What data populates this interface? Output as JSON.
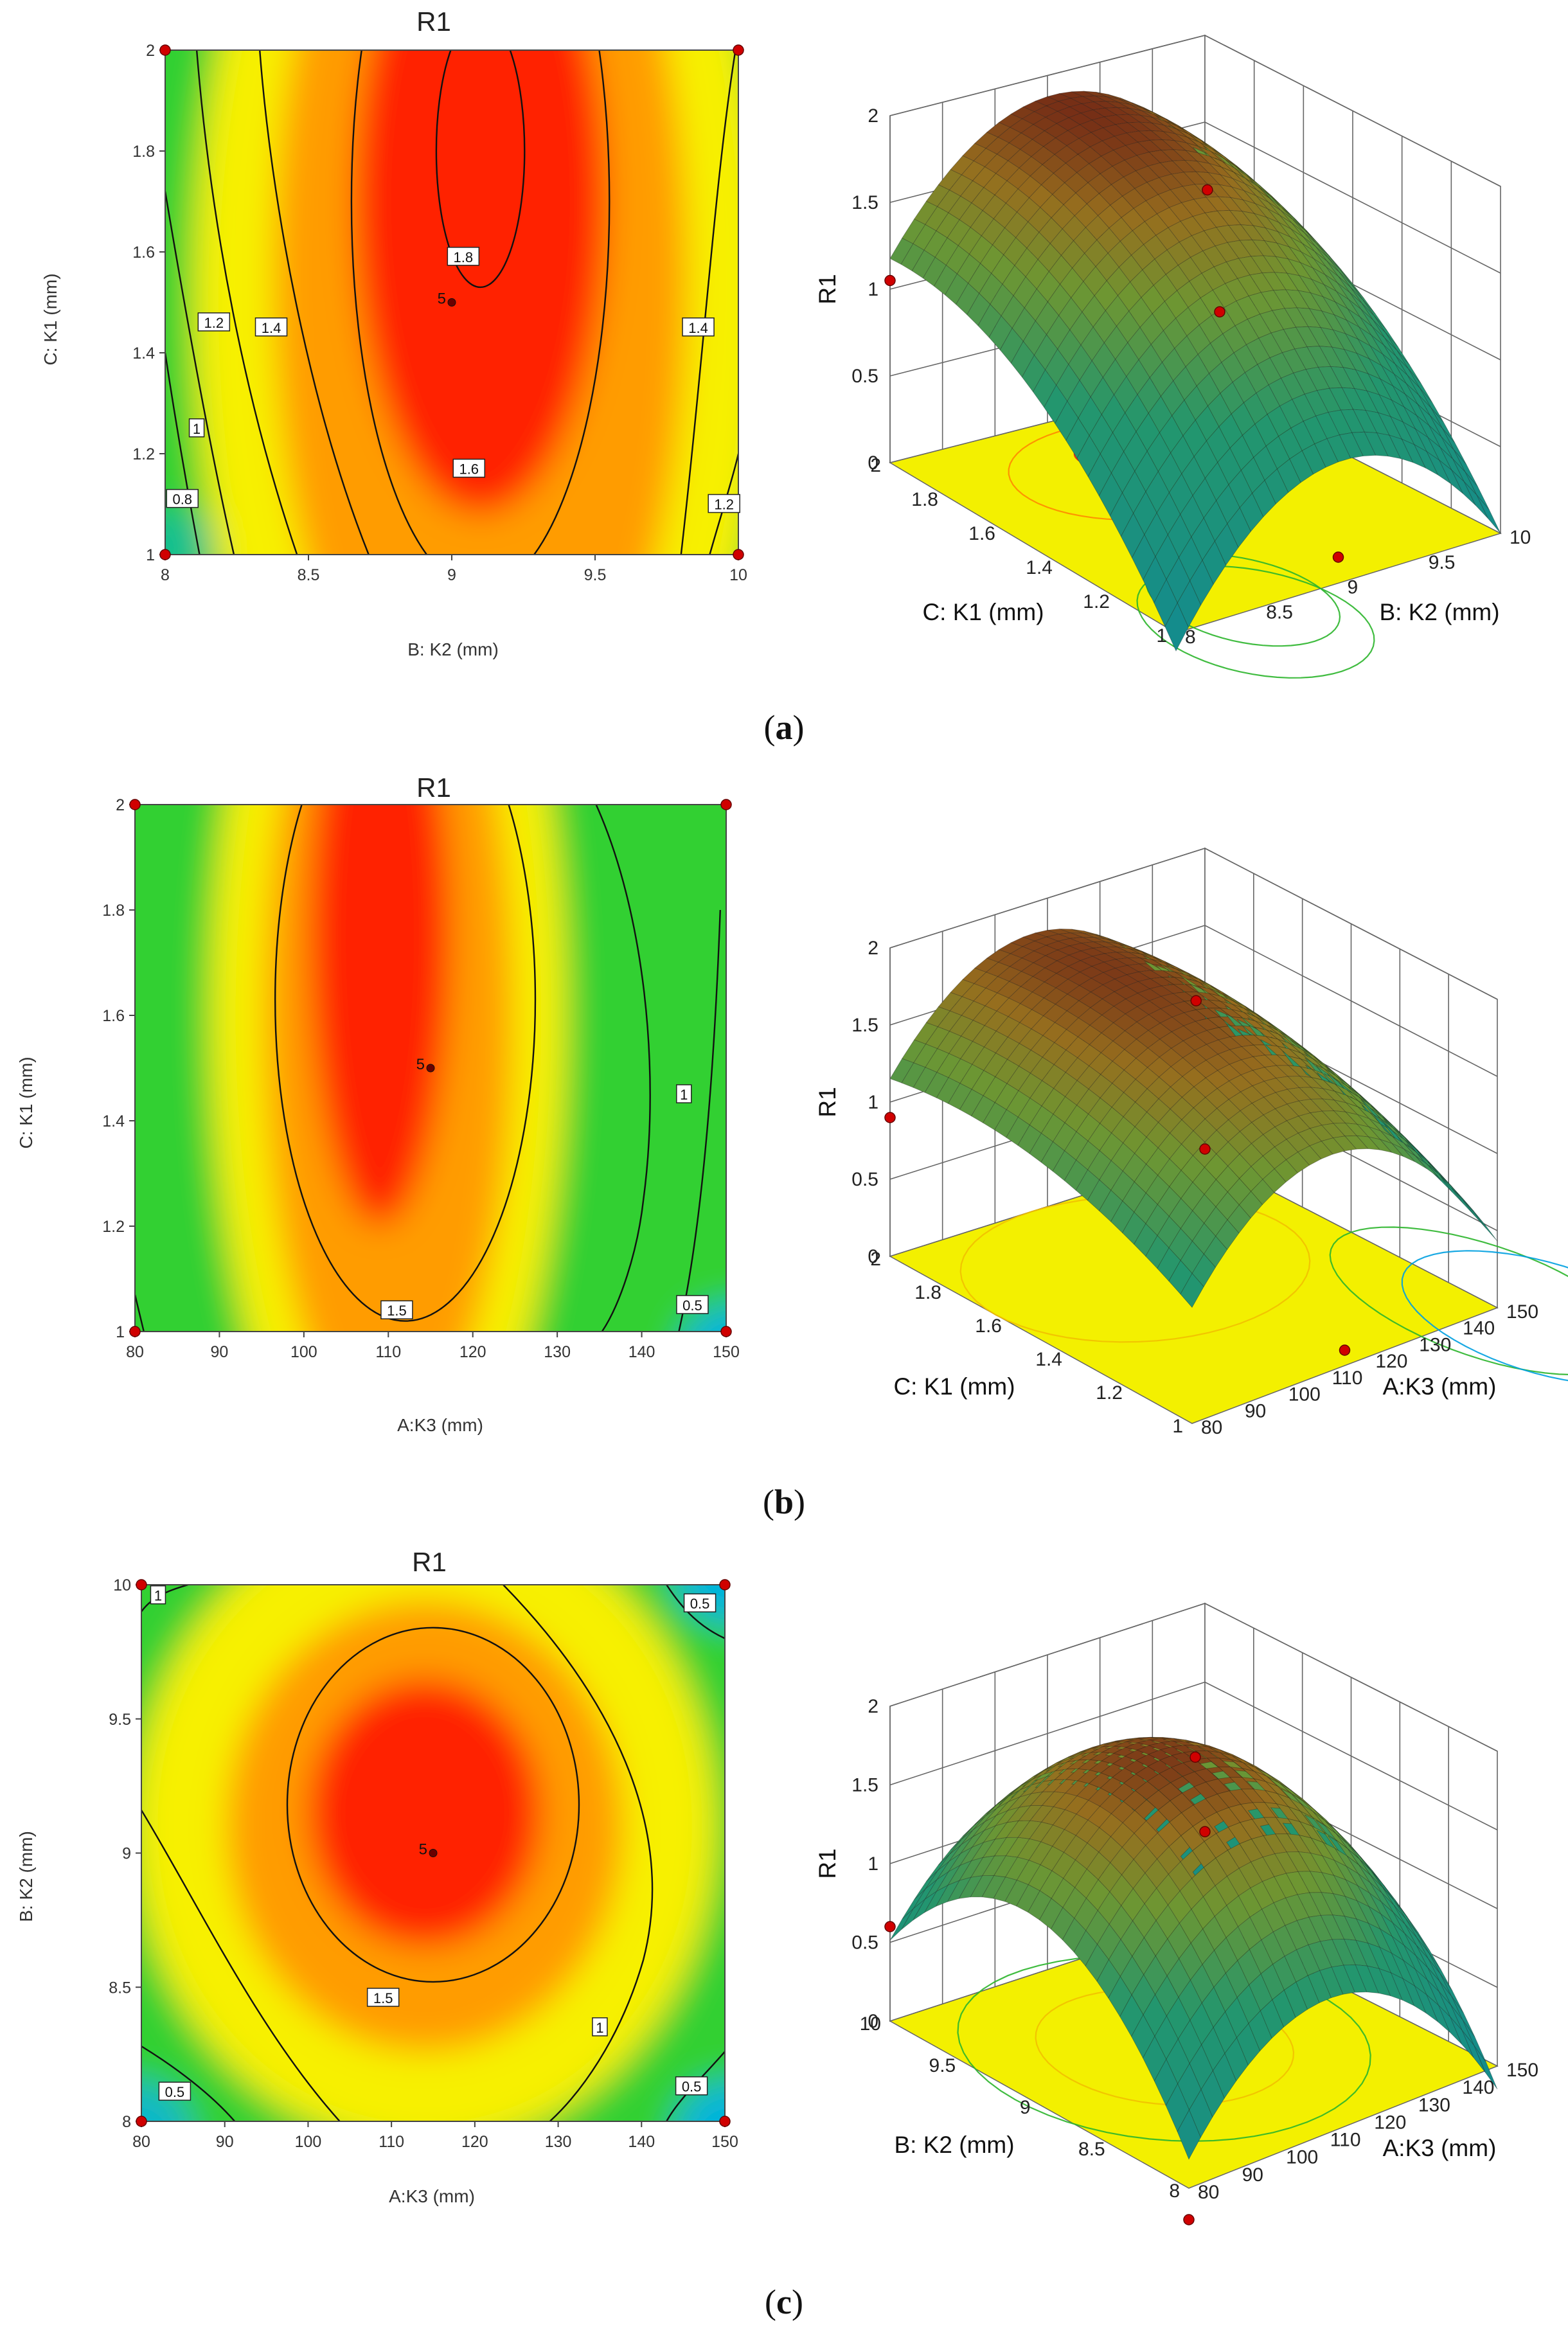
{
  "chart_data": [
    {
      "type": "contour",
      "panel": "a",
      "title": "R1",
      "xlabel": "B: K2 (mm)",
      "ylabel": "C: K1 (mm)",
      "xlim": [
        8,
        10
      ],
      "ylim": [
        1,
        2
      ],
      "xticks": [
        "8",
        "8.5",
        "9",
        "9.5",
        "10"
      ],
      "yticks": [
        "1",
        "1.2",
        "1.4",
        "1.6",
        "1.8",
        "2"
      ],
      "center": {
        "label": "5",
        "x": 9,
        "y": 1.5
      },
      "contour_levels": [
        "0.8",
        "1",
        "1.2",
        "1.4",
        "1.6",
        "1.8"
      ],
      "contour_labels": [
        {
          "text": "1.8",
          "x": 9.04,
          "y": 1.59
        },
        {
          "text": "1.6",
          "x": 9.06,
          "y": 1.17
        },
        {
          "text": "1.4",
          "x": 8.37,
          "y": 1.45
        },
        {
          "text": "1.4",
          "x": 9.86,
          "y": 1.45
        },
        {
          "text": "1.2",
          "x": 8.17,
          "y": 1.46
        },
        {
          "text": "1",
          "x": 8.11,
          "y": 1.25
        },
        {
          "text": "0.8",
          "x": 8.06,
          "y": 1.11
        },
        {
          "text": "1.2",
          "x": 9.95,
          "y": 1.1
        }
      ],
      "design_points": [
        [
          8,
          1
        ],
        [
          10,
          1
        ],
        [
          8,
          2
        ],
        [
          10,
          2
        ]
      ],
      "peak": {
        "x": 9.1,
        "y": 1.8,
        "value": 1.85
      }
    },
    {
      "type": "surface",
      "panel": "a",
      "zlabel": "R1",
      "zlim": [
        0,
        2
      ],
      "zticks": [
        "0",
        "0.5",
        "1",
        "1.5",
        "2"
      ],
      "xlabel": "C: K1 (mm)",
      "xticks": [
        "2",
        "1.8",
        "1.6",
        "1.4",
        "1.2",
        "1"
      ],
      "ylabel": "B: K2 (mm)",
      "yticks": [
        "8",
        "8.5",
        "9",
        "9.5",
        "10"
      ]
    },
    {
      "type": "contour",
      "panel": "b",
      "title": "R1",
      "xlabel": "A:K3 (mm)",
      "ylabel": "C: K1 (mm)",
      "xlim": [
        80,
        150
      ],
      "ylim": [
        1,
        2
      ],
      "xticks": [
        "80",
        "90",
        "100",
        "110",
        "120",
        "130",
        "140",
        "150"
      ],
      "yticks": [
        "1",
        "1.2",
        "1.4",
        "1.6",
        "1.8",
        "2"
      ],
      "center": {
        "label": "5",
        "x": 115,
        "y": 1.5
      },
      "contour_levels": [
        "0.5",
        "1",
        "1.5"
      ],
      "contour_labels": [
        {
          "text": "1.5",
          "x": 111,
          "y": 1.04
        },
        {
          "text": "1",
          "x": 145,
          "y": 1.45
        },
        {
          "text": "0.5",
          "x": 146,
          "y": 1.05
        }
      ],
      "design_points": [
        [
          80,
          1
        ],
        [
          150,
          1
        ],
        [
          80,
          2
        ],
        [
          150,
          2
        ]
      ],
      "peak": {
        "x": 110,
        "y": 1.85,
        "value": 1.8
      }
    },
    {
      "type": "surface",
      "panel": "b",
      "zlabel": "R1",
      "zlim": [
        0,
        2
      ],
      "zticks": [
        "0",
        "0.5",
        "1",
        "1.5",
        "2"
      ],
      "xlabel": "C: K1 (mm)",
      "xticks": [
        "2",
        "1.8",
        "1.6",
        "1.4",
        "1.2",
        "1"
      ],
      "ylabel": "A:K3 (mm)",
      "yticks": [
        "80",
        "90",
        "100",
        "110",
        "120",
        "130",
        "140",
        "150"
      ]
    },
    {
      "type": "contour",
      "panel": "c",
      "title": "R1",
      "xlabel": "A:K3 (mm)",
      "ylabel": "B: K2 (mm)",
      "xlim": [
        80,
        150
      ],
      "ylim": [
        8,
        10
      ],
      "xticks": [
        "80",
        "90",
        "100",
        "110",
        "120",
        "130",
        "140",
        "150"
      ],
      "yticks": [
        "8",
        "8.5",
        "9",
        "9.5",
        "10"
      ],
      "center": {
        "label": "5",
        "x": 115,
        "y": 9
      },
      "contour_levels": [
        "0.5",
        "1",
        "1.5"
      ],
      "contour_labels": [
        {
          "text": "1",
          "x": 82,
          "y": 9.96
        },
        {
          "text": "0.5",
          "x": 147,
          "y": 9.93
        },
        {
          "text": "1.5",
          "x": 109,
          "y": 8.46
        },
        {
          "text": "1",
          "x": 135,
          "y": 8.35
        },
        {
          "text": "0.5",
          "x": 84,
          "y": 8.11
        },
        {
          "text": "0.5",
          "x": 146,
          "y": 8.13
        }
      ],
      "design_points": [
        [
          80,
          8
        ],
        [
          150,
          8
        ],
        [
          80,
          10
        ],
        [
          150,
          10
        ]
      ],
      "peak": {
        "x": 114,
        "y": 9.1,
        "value": 1.85
      }
    },
    {
      "type": "surface",
      "panel": "c",
      "zlabel": "R1",
      "zlim": [
        0,
        2
      ],
      "zticks": [
        "0",
        "0.5",
        "1",
        "1.5",
        "2"
      ],
      "xlabel": "B: K2 (mm)",
      "xticks": [
        "10",
        "9.5",
        "9",
        "8.5",
        "8"
      ],
      "ylabel": "A:K3 (mm)",
      "yticks": [
        "80",
        "90",
        "100",
        "110",
        "120",
        "130",
        "140",
        "150"
      ]
    }
  ],
  "captions": [
    "a",
    "b",
    "c"
  ],
  "colors": {
    "contour_red": "#ff2000",
    "contour_orange": "#ff9c00",
    "contour_yellow": "#f7f000",
    "contour_green": "#30d030",
    "contour_cyan": "#00b0f0",
    "floor_yellow": "#f3f000",
    "surface_top": "#6a1a0e",
    "surface_mid": "#8a9a30",
    "surface_low": "#1d8f80",
    "design_point": "#d00000"
  }
}
